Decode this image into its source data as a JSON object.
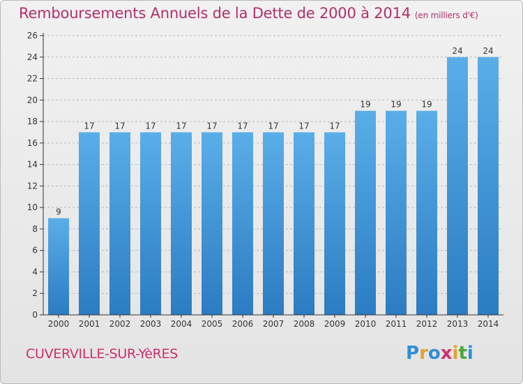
{
  "title": "Remboursements Annuels de la Dette de 2000 à 2014",
  "subtitle": "(en milliers d'€)",
  "commune": "CUVERVILLE-SUR-YèRES",
  "logo": {
    "letters": [
      "P",
      "r",
      "o",
      "x",
      "i",
      "t",
      "i"
    ],
    "colors": [
      "#2f8fd6",
      "#e8a02a",
      "#2f8fd6",
      "#d0306c",
      "#e8a02a",
      "#4aa63c",
      "#2f8fd6"
    ]
  },
  "colors": {
    "bar_top": "#5aaee8",
    "bar_bottom": "#2b7cc2",
    "text": "#b0306a",
    "axis": "#333333",
    "grid": "#b8b8b8"
  },
  "chart_data": {
    "type": "bar",
    "title": "Remboursements Annuels de la Dette de 2000 à 2014",
    "subtitle": "(en milliers d'€)",
    "categories": [
      "2000",
      "2001",
      "2002",
      "2003",
      "2004",
      "2005",
      "2006",
      "2007",
      "2008",
      "2009",
      "2010",
      "2011",
      "2012",
      "2013",
      "2014"
    ],
    "values": [
      9,
      17,
      17,
      17,
      17,
      17,
      17,
      17,
      17,
      17,
      19,
      19,
      19,
      24,
      24
    ],
    "ylim": [
      0,
      26
    ],
    "yticks": [
      0,
      2,
      4,
      6,
      8,
      10,
      12,
      14,
      16,
      18,
      20,
      22,
      24,
      26
    ],
    "grid": true
  }
}
